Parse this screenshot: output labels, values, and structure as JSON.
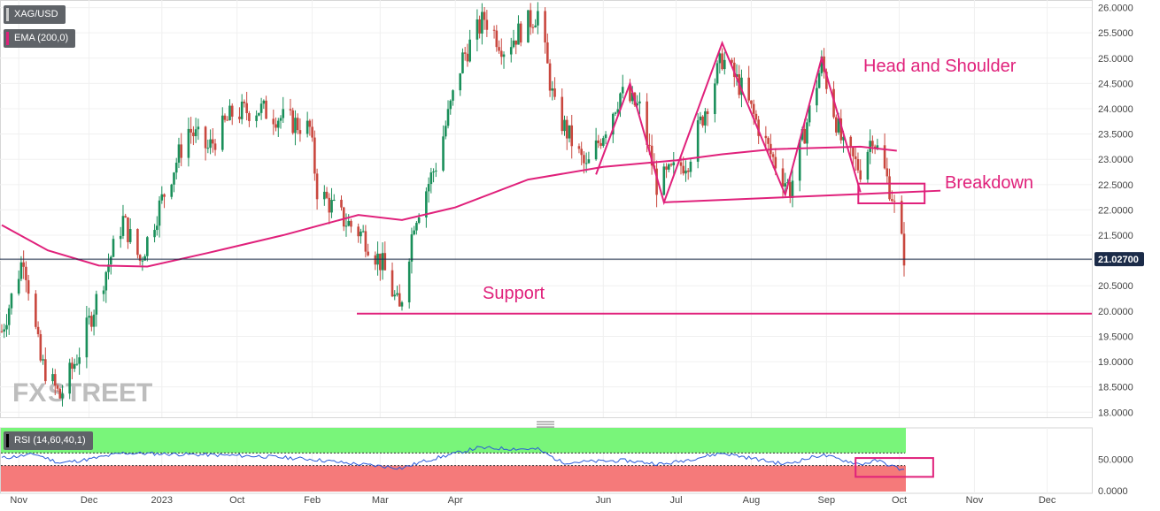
{
  "header": {
    "symbol_label": "XAG/USD",
    "ema_label": "EMA (200,0)",
    "rsi_label": "RSI (14,60,40,1)"
  },
  "watermark": {
    "part1": "FX",
    "part2": "STREET"
  },
  "colors": {
    "up": "#1a8f5a",
    "down": "#c9473e",
    "ema": "#e0217b",
    "annotation": "#e0217b",
    "rsi_line": "#2a5ad8",
    "rsi_upper_zone": "#79f57a",
    "rsi_lower_zone": "#f57a7a",
    "price_tag": "#1b2b48"
  },
  "chart_data": [
    {
      "type": "candlestick",
      "title": "XAG/USD",
      "ylim": [
        17.9,
        26.08
      ],
      "yticks": [
        "18.0000",
        "18.5000",
        "19.0000",
        "19.5000",
        "20.0000",
        "20.5000",
        "21.0000",
        "21.5000",
        "22.0000",
        "22.5000",
        "23.0000",
        "23.5000",
        "24.0000",
        "24.5000",
        "25.0000",
        "25.5000",
        "26.0000"
      ],
      "x_labels": [
        "Oct",
        "Nov",
        "Dec",
        "2023",
        "Feb",
        "Mar",
        "Apr",
        "Jun",
        "Jul",
        "Aug",
        "Sep",
        "Oct",
        "Nov",
        "Dec"
      ],
      "last_price": "21.02700",
      "candles_approx": {
        "time_start": "2022-09-26",
        "time_end": "2023-10-03",
        "close_path": [
          [
            "2022-09-26",
            19.6
          ],
          [
            "2022-10-05",
            21.1
          ],
          [
            "2022-10-12",
            19.0
          ],
          [
            "2022-10-20",
            18.3
          ],
          [
            "2022-10-28",
            19.2
          ],
          [
            "2022-11-08",
            20.8
          ],
          [
            "2022-11-15",
            21.8
          ],
          [
            "2022-11-22",
            21.0
          ],
          [
            "2022-12-01",
            22.2
          ],
          [
            "2022-12-12",
            23.6
          ],
          [
            "2022-12-20",
            23.2
          ],
          [
            "2022-12-30",
            23.9
          ],
          [
            "2023-01-10",
            24.0
          ],
          [
            "2023-01-20",
            23.8
          ],
          [
            "2023-01-31",
            23.6
          ],
          [
            "2023-02-03",
            22.4
          ],
          [
            "2023-02-14",
            21.8
          ],
          [
            "2023-02-22",
            21.5
          ],
          [
            "2023-03-02",
            20.9
          ],
          [
            "2023-03-09",
            20.0
          ],
          [
            "2023-03-15",
            21.8
          ],
          [
            "2023-03-24",
            22.9
          ],
          [
            "2023-04-04",
            25.0
          ],
          [
            "2023-04-13",
            25.8
          ],
          [
            "2023-04-21",
            25.2
          ],
          [
            "2023-05-05",
            25.9
          ],
          [
            "2023-05-12",
            24.0
          ],
          [
            "2023-05-25",
            22.8
          ],
          [
            "2023-06-08",
            24.3
          ],
          [
            "2023-06-16",
            24.0
          ],
          [
            "2023-06-23",
            22.5
          ],
          [
            "2023-07-06",
            23.0
          ],
          [
            "2023-07-20",
            25.0
          ],
          [
            "2023-07-28",
            24.4
          ],
          [
            "2023-08-09",
            23.1
          ],
          [
            "2023-08-17",
            22.4
          ],
          [
            "2023-08-30",
            24.9
          ],
          [
            "2023-09-08",
            23.2
          ],
          [
            "2023-09-15",
            22.8
          ],
          [
            "2023-09-20",
            23.5
          ],
          [
            "2023-09-28",
            22.3
          ],
          [
            "2023-10-03",
            21.1
          ]
        ]
      },
      "ema_200": [
        [
          "2022-09-26",
          21.7
        ],
        [
          "2022-10-15",
          21.2
        ],
        [
          "2022-11-05",
          20.9
        ],
        [
          "2022-11-25",
          20.88
        ],
        [
          "2022-12-20",
          21.15
        ],
        [
          "2023-01-20",
          21.5
        ],
        [
          "2023-02-20",
          21.9
        ],
        [
          "2023-03-10",
          21.8
        ],
        [
          "2023-04-01",
          22.05
        ],
        [
          "2023-05-01",
          22.6
        ],
        [
          "2023-06-01",
          22.85
        ],
        [
          "2023-07-01",
          22.98
        ],
        [
          "2023-07-20",
          23.1
        ],
        [
          "2023-08-10",
          23.2
        ],
        [
          "2023-09-15",
          23.25
        ],
        [
          "2023-09-30",
          23.17
        ]
      ],
      "annotations": [
        {
          "label": "Head and Shoulder",
          "kind": "text"
        },
        {
          "label": "Breakdown",
          "kind": "text"
        },
        {
          "label": "Support",
          "kind": "text",
          "level": 19.95
        }
      ],
      "pattern_zigzag": [
        [
          "2023-05-29",
          22.7
        ],
        [
          "2023-06-12",
          24.5
        ],
        [
          "2023-06-26",
          22.15
        ],
        [
          "2023-07-20",
          25.3
        ],
        [
          "2023-08-15",
          22.3
        ],
        [
          "2023-08-30",
          25.0
        ],
        [
          "2023-09-15",
          22.35
        ]
      ],
      "neckline": [
        [
          "2023-06-26",
          22.15
        ],
        [
          "2023-10-18",
          22.38
        ]
      ],
      "breakdown_box": {
        "start": "2023-09-28",
        "end": "2023-10-10",
        "low": 22.13,
        "high": 22.52
      }
    },
    {
      "type": "line",
      "title": "RSI (14,60,40,1)",
      "ylim": [
        0,
        100
      ],
      "yticks": [
        "0.0000",
        "50.0000"
      ],
      "zones": {
        "upper": [
          60,
          100
        ],
        "lower": [
          0,
          40
        ]
      },
      "rsi_path": [
        [
          "2022-09-26",
          52
        ],
        [
          "2022-10-10",
          58
        ],
        [
          "2022-10-20",
          44
        ],
        [
          "2022-11-01",
          50
        ],
        [
          "2022-11-15",
          60
        ],
        [
          "2022-12-10",
          58
        ],
        [
          "2023-01-10",
          55
        ],
        [
          "2023-02-01",
          50
        ],
        [
          "2023-02-15",
          44
        ],
        [
          "2023-03-10",
          36
        ],
        [
          "2023-03-20",
          48
        ],
        [
          "2023-04-10",
          68
        ],
        [
          "2023-05-05",
          66
        ],
        [
          "2023-05-15",
          45
        ],
        [
          "2023-06-10",
          48
        ],
        [
          "2023-06-26",
          42
        ],
        [
          "2023-07-20",
          60
        ],
        [
          "2023-08-15",
          42
        ],
        [
          "2023-08-30",
          57
        ],
        [
          "2023-09-15",
          42
        ],
        [
          "2023-09-22",
          48
        ],
        [
          "2023-10-03",
          32
        ]
      ],
      "highlight_box": {
        "start": "2023-09-13",
        "end": "2023-10-15",
        "low": 22,
        "high": 52
      }
    }
  ]
}
